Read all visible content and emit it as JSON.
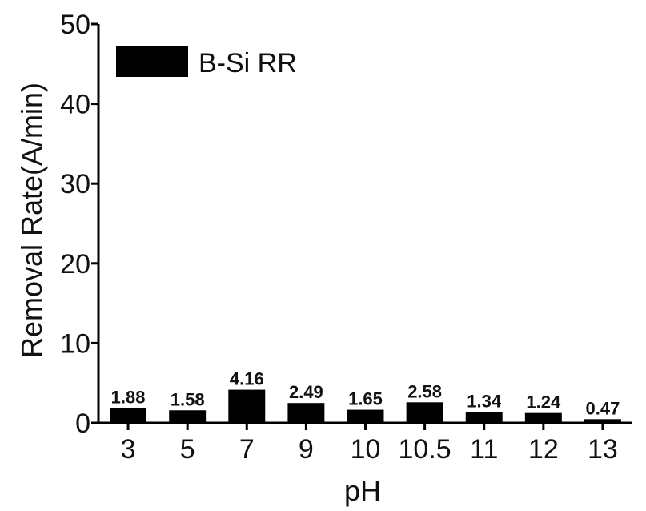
{
  "chart_data": {
    "type": "bar",
    "categories": [
      "3",
      "5",
      "7",
      "9",
      "10",
      "10.5",
      "11",
      "12",
      "13"
    ],
    "series": [
      {
        "name": "B-Si RR",
        "values": [
          1.88,
          1.58,
          4.16,
          2.49,
          1.65,
          2.58,
          1.34,
          1.24,
          0.47
        ]
      }
    ],
    "data_labels": [
      "1.88",
      "1.58",
      "4.16",
      "2.49",
      "1.65",
      "2.58",
      "1.34",
      "1.24",
      "0.47"
    ],
    "xlabel": "pH",
    "ylabel": "Removal Rate(A/min)",
    "ylim": [
      0,
      50
    ],
    "yticks": [
      0,
      10,
      20,
      30,
      40,
      50
    ],
    "legend": {
      "position": "top-left",
      "entries": [
        "B-Si RR"
      ]
    },
    "grid": false,
    "bar_color": "#000000"
  }
}
